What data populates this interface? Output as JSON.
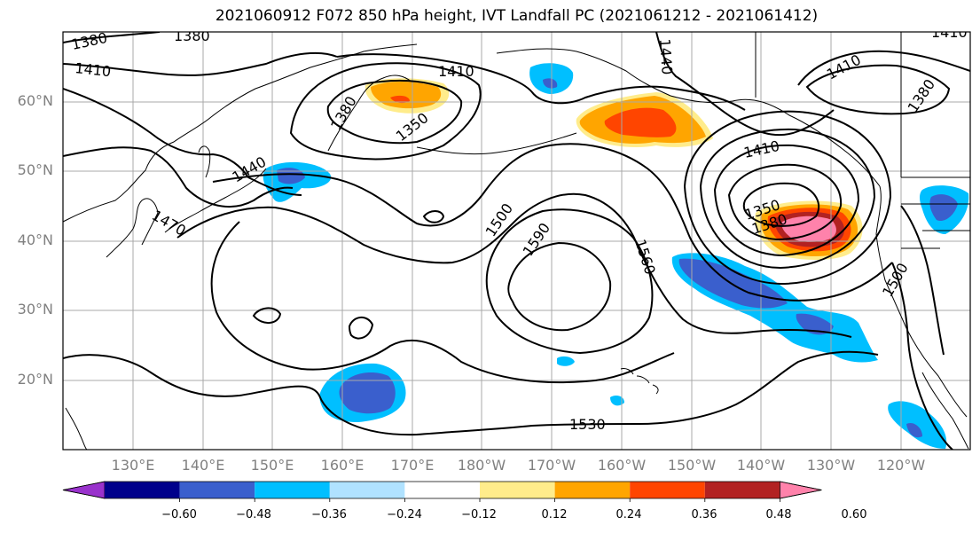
{
  "title": "2021060912 F072 850 hPa height, IVT Landfall PC (2021061212 - 2021061412)",
  "latitude_labels": [
    "60°N",
    "50°N",
    "40°N",
    "30°N",
    "20°N"
  ],
  "longitude_labels": [
    "130°E",
    "140°E",
    "150°E",
    "160°E",
    "170°E",
    "180°W",
    "170°W",
    "160°W",
    "150°W",
    "140°W",
    "130°W",
    "120°W"
  ],
  "contour_labels": [
    "1380",
    "1380",
    "1410",
    "1410",
    "1440",
    "1470",
    "1410",
    "1380",
    "1350",
    "1440",
    "1410",
    "1380",
    "1410",
    "1500",
    "1590",
    "1560",
    "1350",
    "1380",
    "1500",
    "1530"
  ],
  "colorbar": {
    "tick_labels": [
      "−0.60",
      "−0.48",
      "−0.36",
      "−0.24",
      "−0.12",
      "0.12",
      "0.24",
      "0.36",
      "0.48",
      "0.60"
    ],
    "colors": [
      "#9932cc",
      "#00008b",
      "#3a5fcd",
      "#00bfff",
      "#b0e2ff",
      "#ffffff",
      "#ffec8b",
      "#ffa500",
      "#ff4500",
      "#b22222",
      "#ff82ab"
    ]
  },
  "shading_colors": {
    "neg_light": "#00bfff",
    "neg_dark": "#3a5fcd",
    "pos_yellow": "#ffec8b",
    "pos_orange": "#ffa500",
    "pos_red": "#ff4500",
    "pos_darkred": "#b22222",
    "pos_pink": "#ff82ab"
  }
}
